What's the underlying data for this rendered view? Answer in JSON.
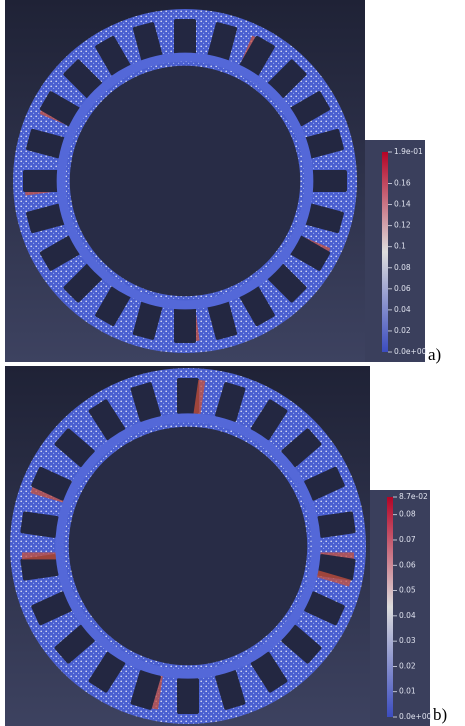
{
  "panels": [
    {
      "label": "a)",
      "colorbar": {
        "ticks": [
          {
            "value": 0,
            "label": "0.0e+00"
          },
          0.02,
          0.04,
          0.06,
          0.08,
          0.1,
          0.12,
          0.14,
          0.16,
          {
            "value": 0.19,
            "label": "1.9e-01"
          }
        ]
      }
    },
    {
      "label": "b)",
      "colorbar": {
        "ticks": [
          {
            "value": 0,
            "label": "0.0e+00"
          },
          0.01,
          0.02,
          0.03,
          0.04,
          0.05,
          0.06,
          0.07,
          0.08,
          {
            "value": 0.087,
            "label": "8.7e-02"
          }
        ]
      }
    }
  ]
}
